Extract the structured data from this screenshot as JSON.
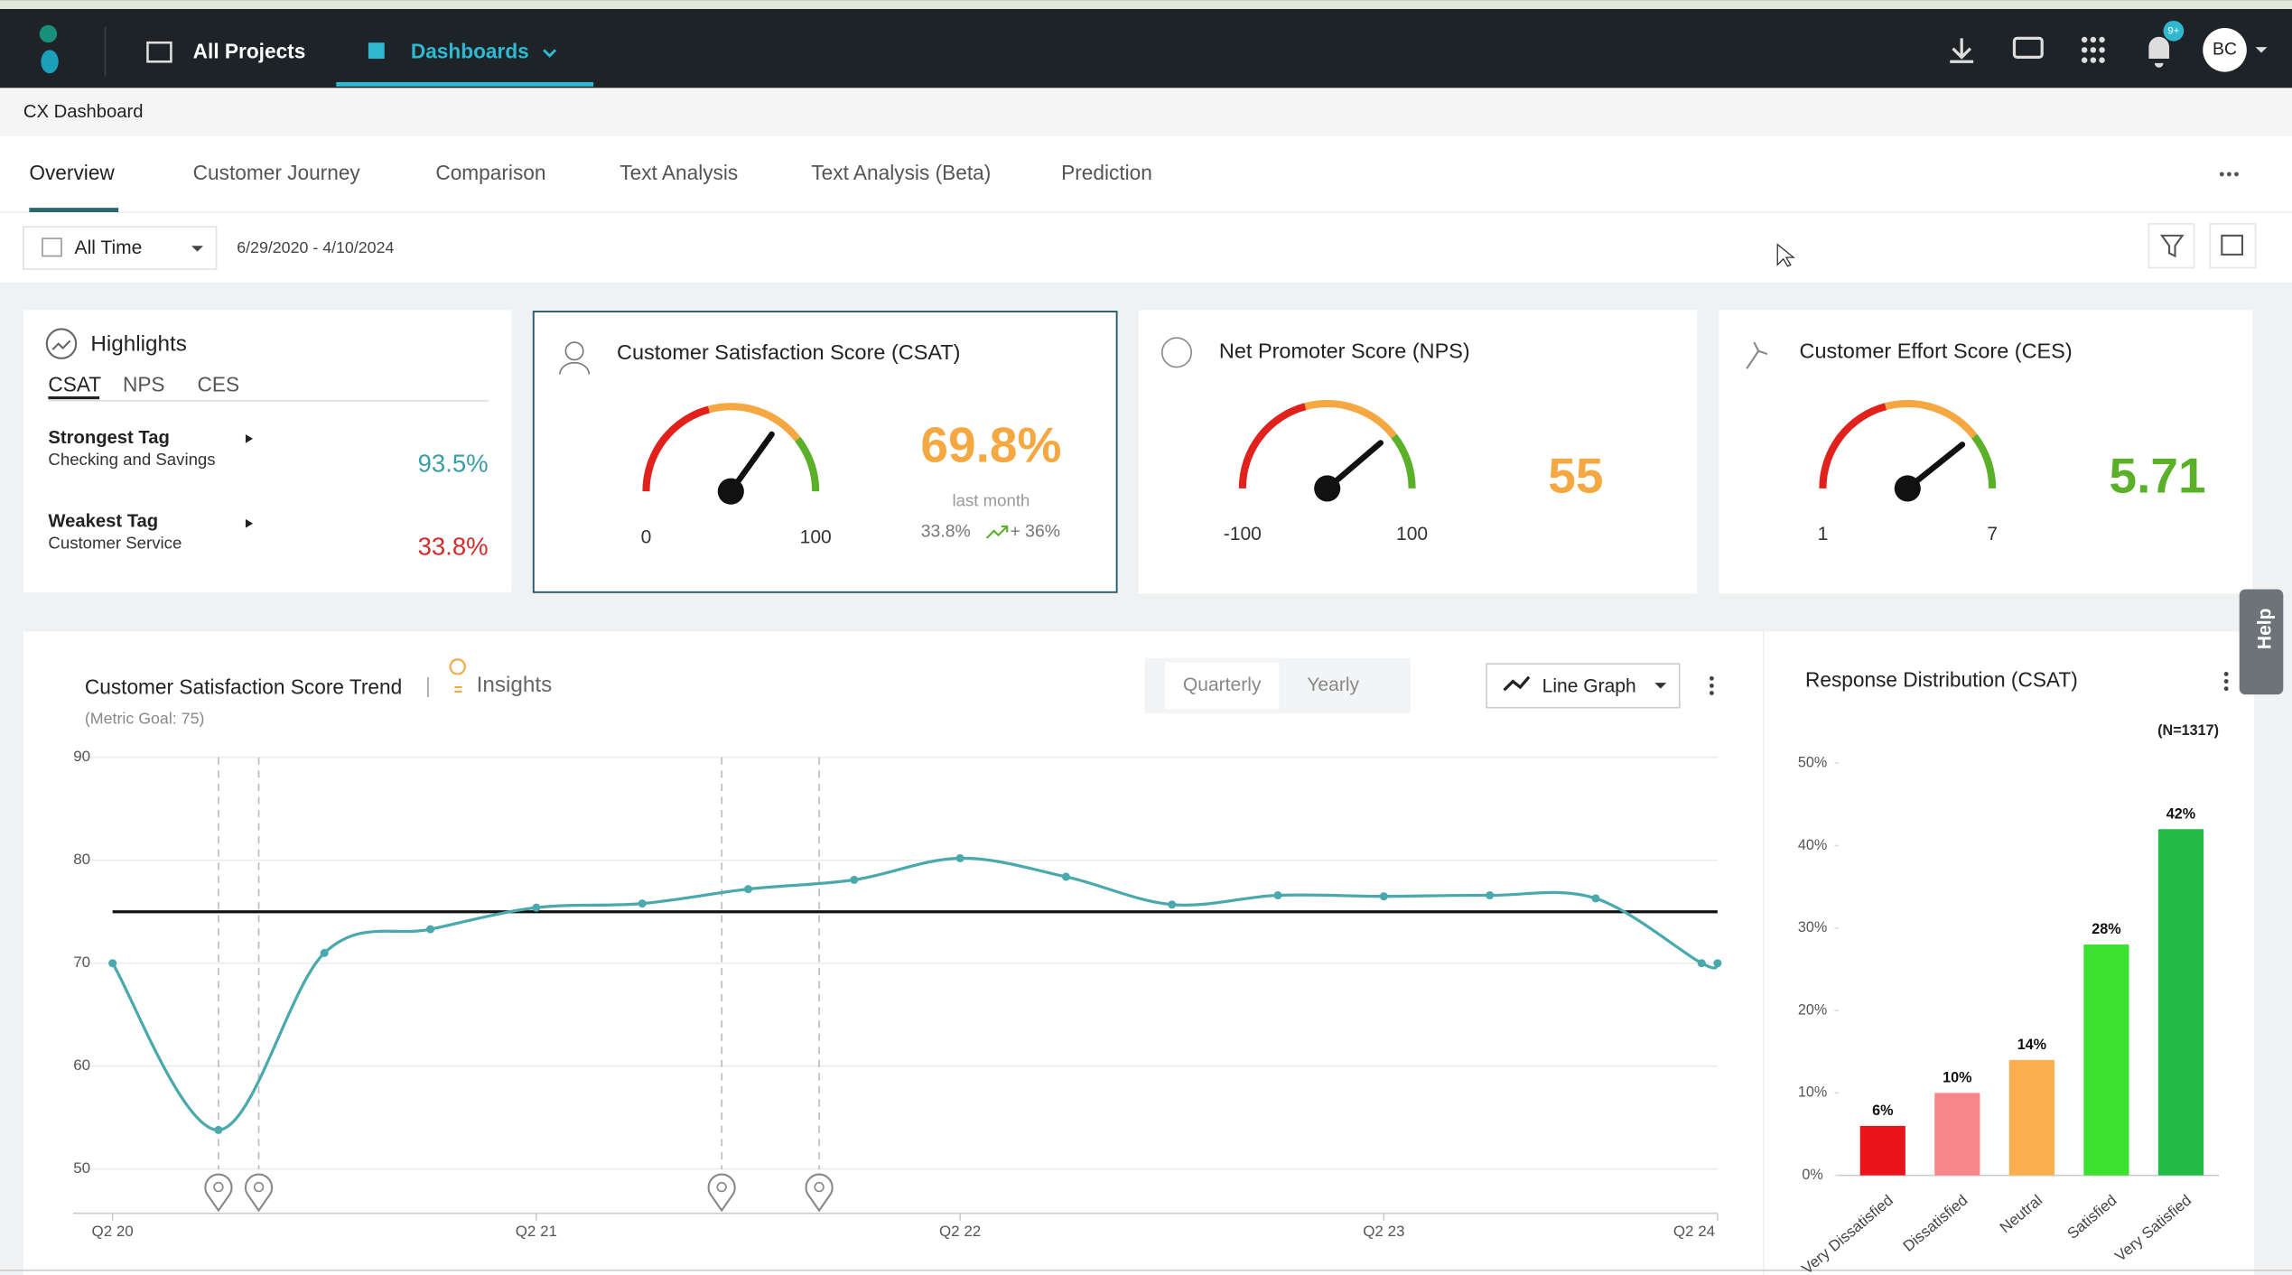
{
  "nav": {
    "all_projects": "All Projects",
    "dashboards": "Dashboards",
    "badge": "9+",
    "avatar": "BC"
  },
  "breadcrumb": "CX Dashboard",
  "tabs": [
    "Overview",
    "Customer Journey",
    "Comparison",
    "Text Analysis",
    "Text Analysis (Beta)",
    "Prediction"
  ],
  "filter": {
    "period": "All Time",
    "range": "6/29/2020 - 4/10/2024"
  },
  "highlights": {
    "title": "Highlights",
    "tabs": [
      "CSAT",
      "NPS",
      "CES"
    ],
    "items": [
      {
        "label": "Strongest Tag",
        "tag": "Checking and Savings",
        "value": "93.5%",
        "color": "#3a9ea5"
      },
      {
        "label": "Weakest Tag",
        "tag": "Customer Service",
        "value": "33.8%",
        "color": "#d42b2b"
      }
    ]
  },
  "gauges": [
    {
      "title": "Customer Satisfaction Score (CSAT)",
      "min": 0,
      "max": 100,
      "value": 69.8,
      "value_label": "69.8%",
      "color": "#f5a742",
      "note": "last month",
      "previous": "33.8%",
      "change": "+ 36%"
    },
    {
      "title": "Net Promoter Score (NPS)",
      "min": -100,
      "max": 100,
      "value": 55,
      "color": "#f5a742"
    },
    {
      "title": "Customer Effort Score (CES)",
      "min": 1,
      "max": 7,
      "value": 5.71,
      "color": "#5bb02a"
    }
  ],
  "chart_data": [
    {
      "type": "line",
      "title": "Customer Satisfaction Score Trend",
      "insights": "Insights",
      "subtitle": "(Metric Goal: 75)",
      "toggle": [
        "Quarterly",
        "Yearly"
      ],
      "chart_kind": "Line Graph",
      "x": [
        0,
        1,
        2,
        3,
        4,
        5,
        6,
        7,
        8,
        9,
        10,
        11,
        12,
        13,
        14,
        15,
        15.15
      ],
      "values": [
        70,
        53.8,
        71,
        73.3,
        75.4,
        75.8,
        77.2,
        78.1,
        80.2,
        78.4,
        75.7,
        76.6,
        76.5,
        76.6,
        76.3,
        70,
        70
      ],
      "color": "#4aa9ad",
      "goal": 75,
      "events_x": [
        1,
        1.38,
        5.75,
        6.67
      ],
      "xlim": [
        0,
        15.15
      ],
      "xticks": [
        {
          "value": 0,
          "label": "Q2 20"
        },
        {
          "value": 4,
          "label": "Q2 21"
        },
        {
          "value": 8,
          "label": "Q2 22"
        },
        {
          "value": 12,
          "label": "Q2 23"
        },
        {
          "value": 15.15,
          "label": "Q2 24"
        }
      ],
      "ylim": [
        45.7,
        90
      ],
      "yticks": [
        50,
        60,
        70,
        80,
        90
      ],
      "grid": true
    },
    {
      "type": "bar",
      "title": "Response Distribution (CSAT)",
      "note": "(N=1317)",
      "categories": [
        "Very Dissatisfied",
        "Dissatisfied",
        "Neutral",
        "Satisfied",
        "Very Satisfied"
      ],
      "values": [
        6,
        10,
        14,
        28,
        42
      ],
      "value_labels": [
        "6%",
        "10%",
        "14%",
        "28%",
        "42%"
      ],
      "colors": [
        "#e8141a",
        "#f7868a",
        "#fbb04f",
        "#3ce02e",
        "#23bb45"
      ],
      "ylim": [
        0,
        50
      ],
      "yticks": [
        {
          "value": 0,
          "label": "0%"
        },
        {
          "value": 10,
          "label": "10%"
        },
        {
          "value": 20,
          "label": "20%"
        },
        {
          "value": 30,
          "label": "30%"
        },
        {
          "value": 40,
          "label": "40%"
        },
        {
          "value": 50,
          "label": "50%"
        }
      ]
    }
  ],
  "help": "Help"
}
